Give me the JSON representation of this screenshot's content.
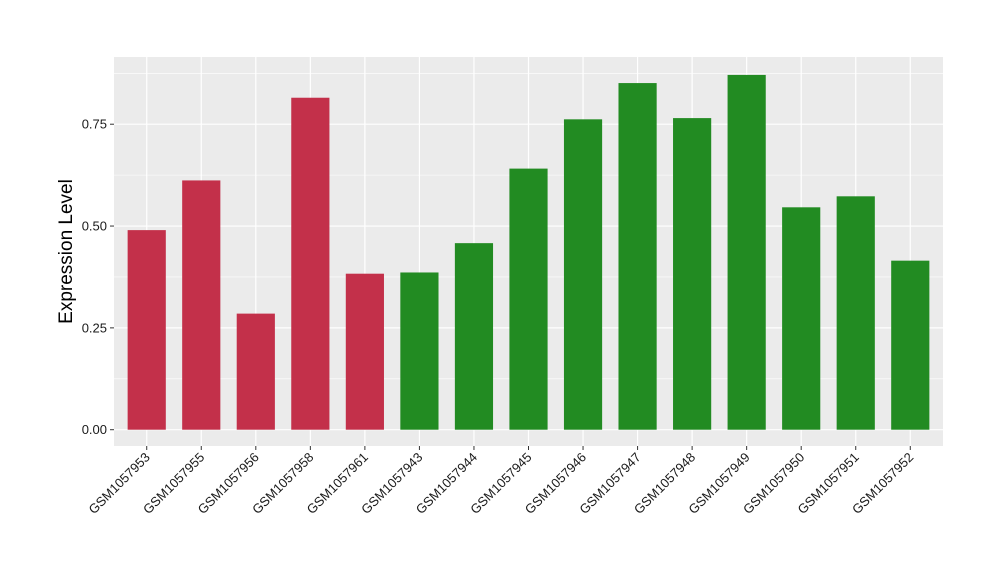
{
  "chart_data": {
    "type": "bar",
    "ylabel": "Expression Level",
    "xlabel": "",
    "ylim": [
      -0.04,
      0.915
    ],
    "yticks": [
      0.0,
      0.25,
      0.5,
      0.75
    ],
    "ytick_labels": [
      "0.00",
      "0.25",
      "0.50",
      "0.75"
    ],
    "grid": true,
    "legend": "none",
    "colors": {
      "group_red": "#c3304a",
      "group_green": "#228b22",
      "panel": "#ebebeb",
      "gridline": "#ffffff"
    },
    "categories": [
      "GSM1057953",
      "GSM1057955",
      "GSM1057956",
      "GSM1057958",
      "GSM1057961",
      "GSM1057943",
      "GSM1057944",
      "GSM1057945",
      "GSM1057946",
      "GSM1057947",
      "GSM1057948",
      "GSM1057949",
      "GSM1057950",
      "GSM1057951",
      "GSM1057952"
    ],
    "values": [
      0.49,
      0.612,
      0.285,
      0.815,
      0.383,
      0.386,
      0.458,
      0.641,
      0.762,
      0.851,
      0.765,
      0.871,
      0.546,
      0.573,
      0.415
    ],
    "bar_groups": [
      "red",
      "red",
      "red",
      "red",
      "red",
      "green",
      "green",
      "green",
      "green",
      "green",
      "green",
      "green",
      "green",
      "green",
      "green"
    ]
  }
}
